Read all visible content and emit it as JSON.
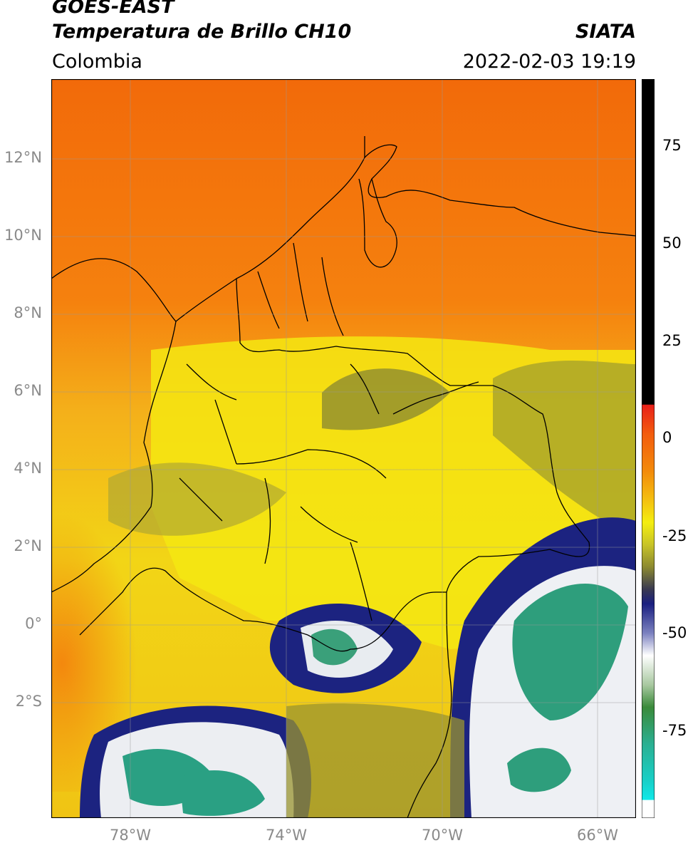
{
  "header": {
    "title_line1": "GOES-EAST",
    "title_line2": "Temperatura de Brillo CH10",
    "organization": "SIATA",
    "region": "Colombia",
    "timestamp": "2022-02-03 19:19"
  },
  "map": {
    "lat_labels": [
      "12°N",
      "10°N",
      "8°N",
      "6°N",
      "4°N",
      "2°N",
      "0°",
      "2°S"
    ],
    "lon_labels": [
      "78°W",
      "74°W",
      "70°W",
      "66°W"
    ],
    "grid": true,
    "background_color": "#f08a10"
  },
  "colorbar": {
    "ticks": [
      "75",
      "50",
      "25",
      "0",
      "-25",
      "-50",
      "-75"
    ],
    "colors": {
      "warm_black": "#000000",
      "red": "#e8201a",
      "orange": "#f38a0a",
      "yellow": "#f4ee10",
      "olive": "#8c8a30",
      "navy": "#1a1f80",
      "white": "#ffffff",
      "green": "#3a8a3a",
      "teal": "#2ab092",
      "cyan": "#10e8e8"
    }
  }
}
